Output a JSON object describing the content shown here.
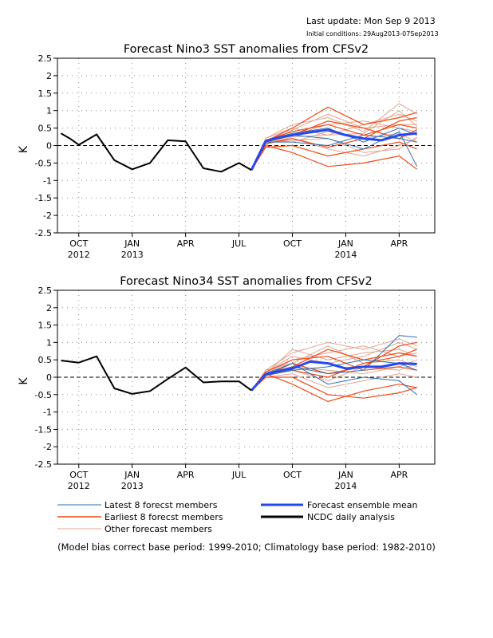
{
  "header": {
    "last_update": "Last update: Mon Sep 9 2013",
    "initial_conditions": "Initial conditions: 29Aug2013-07Sep2013"
  },
  "x_ticks": [
    {
      "label": "OCT",
      "year": "2012",
      "month": 0
    },
    {
      "label": "JAN",
      "year": "2013",
      "month": 3
    },
    {
      "label": "APR",
      "year": "",
      "month": 6
    },
    {
      "label": "JUL",
      "year": "",
      "month": 9
    },
    {
      "label": "OCT",
      "year": "",
      "month": 12
    },
    {
      "label": "JAN",
      "year": "2014",
      "month": 15
    },
    {
      "label": "APR",
      "year": "",
      "month": 18
    }
  ],
  "legend": {
    "latest": "Latest 8 forecst members",
    "earliest": "Earliest 8 forecst members",
    "other": "Other forecast members",
    "mean": "Forecast ensemble mean",
    "ncdc": "NCDC daily analysis"
  },
  "colors": {
    "latest": "#2f6fb0",
    "earliest": "#ee4a14",
    "other": "#e3a592",
    "mean": "#2448ee",
    "ncdc": "#000000"
  },
  "footnote": "(Model bias correct base period: 1999-2010; Climatology base period: 1982-2010)",
  "chart_data": [
    {
      "type": "line",
      "title": "Forecast Nino3 SST anomalies from CFSv2",
      "ylabel": "K",
      "ylim": [
        -2.5,
        2.5
      ],
      "yticks": [
        "2.5",
        "2",
        "1.5",
        "1",
        "0.5",
        "0",
        "-0.5",
        "-1",
        "-1.5",
        "-2",
        "-2.5"
      ],
      "grid": true,
      "x_units": "months since Sep 2012",
      "ncdc_analysis": {
        "x": [
          -1,
          -0.5,
          0,
          1,
          2,
          3,
          4,
          5,
          6,
          7,
          8,
          9,
          9.7
        ],
        "y": [
          0.35,
          0.2,
          0.02,
          0.32,
          -0.42,
          -0.68,
          -0.5,
          0.15,
          0.12,
          -0.65,
          -0.75,
          -0.5,
          -0.7
        ]
      },
      "ensemble_mean": {
        "x": [
          9.7,
          10.5,
          11,
          12,
          13,
          14,
          15,
          16,
          17,
          18,
          19
        ],
        "y": [
          -0.7,
          0.12,
          0.2,
          0.3,
          0.38,
          0.45,
          0.3,
          0.2,
          0.15,
          0.3,
          0.35
        ]
      },
      "earliest_members": [
        {
          "x": [
            9.7,
            10.5,
            12,
            14,
            16,
            18,
            19
          ],
          "y": [
            -0.7,
            0.12,
            0.5,
            1.1,
            0.6,
            0.8,
            0.95
          ]
        },
        {
          "x": [
            9.7,
            10.5,
            12,
            14,
            16,
            18,
            19
          ],
          "y": [
            -0.7,
            0.0,
            -0.2,
            -0.6,
            -0.5,
            -0.3,
            -0.68
          ]
        },
        {
          "x": [
            9.7,
            10.5,
            12,
            14,
            16,
            18,
            19
          ],
          "y": [
            -0.7,
            0.15,
            0.4,
            0.6,
            0.3,
            0.6,
            0.5
          ]
        },
        {
          "x": [
            9.7,
            10.5,
            12,
            14,
            16,
            18,
            19
          ],
          "y": [
            -0.7,
            0.05,
            0.2,
            -0.05,
            0.2,
            0.7,
            0.8
          ]
        },
        {
          "x": [
            9.7,
            10.5,
            12,
            14,
            16,
            18,
            19
          ],
          "y": [
            -0.7,
            0.1,
            0.3,
            0.7,
            0.5,
            0.2,
            0.45
          ]
        },
        {
          "x": [
            9.7,
            10.5,
            12,
            14,
            16,
            18,
            19
          ],
          "y": [
            -0.7,
            -0.05,
            0.0,
            -0.3,
            -0.1,
            0.1,
            -0.1
          ]
        }
      ],
      "latest_members": [
        {
          "x": [
            9.7,
            10.5,
            12,
            14,
            16,
            18,
            19
          ],
          "y": [
            -0.7,
            0.1,
            0.3,
            0.2,
            -0.1,
            0.4,
            -0.6
          ]
        },
        {
          "x": [
            9.7,
            10.5,
            12,
            14,
            16,
            18,
            19
          ],
          "y": [
            -0.7,
            0.15,
            0.35,
            0.5,
            0.1,
            0.5,
            0.3
          ]
        },
        {
          "x": [
            9.7,
            10.5,
            12,
            14,
            16,
            18,
            19
          ],
          "y": [
            -0.7,
            0.1,
            0.1,
            0.0,
            0.3,
            0.2,
            0.1
          ]
        }
      ],
      "other_members": [
        {
          "x": [
            9.7,
            10.5,
            12,
            14,
            16,
            18,
            19
          ],
          "y": [
            -0.7,
            0.2,
            0.6,
            0.8,
            0.4,
            1.2,
            0.9
          ]
        },
        {
          "x": [
            9.7,
            10.5,
            12,
            14,
            16,
            18,
            19
          ],
          "y": [
            -0.7,
            0.05,
            0.25,
            0.3,
            0.6,
            0.9,
            0.7
          ]
        },
        {
          "x": [
            9.7,
            10.5,
            12,
            14,
            16,
            18,
            19
          ],
          "y": [
            -0.7,
            0.1,
            0.2,
            -0.1,
            -0.3,
            0.0,
            0.2
          ]
        },
        {
          "x": [
            9.7,
            10.5,
            12,
            14,
            16,
            18,
            19
          ],
          "y": [
            -0.7,
            0.0,
            0.45,
            0.9,
            0.5,
            0.6,
            0.6
          ]
        },
        {
          "x": [
            9.7,
            10.5,
            12,
            14,
            16,
            18,
            19
          ],
          "y": [
            -0.7,
            0.15,
            0.1,
            0.4,
            0.2,
            0.35,
            0.1
          ]
        },
        {
          "x": [
            9.7,
            10.5,
            12,
            14,
            16,
            18,
            19
          ],
          "y": [
            -0.7,
            0.05,
            0.3,
            0.6,
            0.7,
            0.5,
            0.4
          ]
        },
        {
          "x": [
            9.7,
            10.5,
            12,
            14,
            16,
            18,
            19
          ],
          "y": [
            -0.7,
            0.1,
            0.15,
            0.2,
            -0.2,
            -0.1,
            0.25
          ]
        },
        {
          "x": [
            9.7,
            10.5,
            12,
            14,
            16,
            18,
            19
          ],
          "y": [
            -0.7,
            0.2,
            0.5,
            0.3,
            0.35,
            1.0,
            0.55
          ]
        }
      ]
    },
    {
      "type": "line",
      "title": "Forecast Nino34 SST anomalies from CFSv2",
      "ylabel": "K",
      "ylim": [
        -2.5,
        2.5
      ],
      "yticks": [
        "2.5",
        "2",
        "1.5",
        "1",
        "0.5",
        "0",
        "-0.5",
        "-1",
        "-1.5",
        "-2",
        "-2.5"
      ],
      "grid": true,
      "x_units": "months since Sep 2012",
      "ncdc_analysis": {
        "x": [
          -1,
          0,
          1,
          2,
          3,
          4,
          5,
          6,
          7,
          8,
          9,
          9.7
        ],
        "y": [
          0.48,
          0.42,
          0.6,
          -0.32,
          -0.48,
          -0.4,
          -0.05,
          0.28,
          -0.15,
          -0.12,
          -0.12,
          -0.38
        ]
      },
      "ensemble_mean": {
        "x": [
          9.7,
          10.5,
          11,
          12,
          13,
          14,
          15,
          16,
          17,
          18,
          19
        ],
        "y": [
          -0.38,
          0.08,
          0.15,
          0.25,
          0.45,
          0.4,
          0.25,
          0.3,
          0.3,
          0.4,
          0.38
        ]
      },
      "earliest_members": [
        {
          "x": [
            9.7,
            10.5,
            12,
            14,
            16,
            18,
            19
          ],
          "y": [
            -0.38,
            0.0,
            0.0,
            -0.5,
            -0.6,
            -0.45,
            -0.3
          ]
        },
        {
          "x": [
            9.7,
            10.5,
            12,
            14,
            16,
            18,
            19
          ],
          "y": [
            -0.38,
            0.1,
            0.3,
            0.8,
            0.5,
            0.7,
            0.6
          ]
        },
        {
          "x": [
            9.7,
            10.5,
            12,
            14,
            16,
            18,
            19
          ],
          "y": [
            -0.38,
            0.1,
            -0.2,
            -0.7,
            -0.4,
            -0.2,
            -0.3
          ]
        },
        {
          "x": [
            9.7,
            10.5,
            12,
            14,
            16,
            18,
            19
          ],
          "y": [
            -0.38,
            0.05,
            0.4,
            0.1,
            0.3,
            0.9,
            1.0
          ]
        },
        {
          "x": [
            9.7,
            10.5,
            12,
            14,
            16,
            18,
            19
          ],
          "y": [
            -0.38,
            0.15,
            0.5,
            0.6,
            0.2,
            0.3,
            0.2
          ]
        },
        {
          "x": [
            9.7,
            10.5,
            12,
            14,
            16,
            18,
            19
          ],
          "y": [
            -0.38,
            0.05,
            0.2,
            0.0,
            0.4,
            0.6,
            0.8
          ]
        }
      ],
      "latest_members": [
        {
          "x": [
            9.7,
            10.5,
            12,
            14,
            16,
            18,
            19
          ],
          "y": [
            -0.38,
            0.1,
            0.3,
            0.1,
            0.2,
            1.2,
            1.15
          ]
        },
        {
          "x": [
            9.7,
            10.5,
            12,
            14,
            16,
            18,
            19
          ],
          "y": [
            -0.38,
            0.1,
            0.4,
            -0.2,
            0.0,
            -0.1,
            -0.5
          ]
        },
        {
          "x": [
            9.7,
            10.5,
            12,
            14,
            16,
            18,
            19
          ],
          "y": [
            -0.38,
            0.05,
            0.2,
            0.3,
            0.5,
            0.4,
            0.2
          ]
        }
      ],
      "other_members": [
        {
          "x": [
            9.7,
            10.5,
            12,
            14,
            16,
            18,
            19
          ],
          "y": [
            -0.38,
            0.2,
            0.7,
            1.0,
            0.8,
            1.1,
            0.9
          ]
        },
        {
          "x": [
            9.7,
            10.5,
            12,
            14,
            16,
            18,
            19
          ],
          "y": [
            -0.38,
            0.1,
            0.5,
            0.7,
            0.9,
            0.6,
            0.7
          ]
        },
        {
          "x": [
            9.7,
            10.5,
            12,
            14,
            16,
            18,
            19
          ],
          "y": [
            -0.38,
            0.0,
            0.1,
            -0.3,
            -0.1,
            0.1,
            0.0
          ]
        },
        {
          "x": [
            9.7,
            10.5,
            12,
            14,
            16,
            18,
            19
          ],
          "y": [
            -0.38,
            0.15,
            0.6,
            0.4,
            0.6,
            1.0,
            0.8
          ]
        },
        {
          "x": [
            9.7,
            10.5,
            12,
            14,
            16,
            18,
            19
          ],
          "y": [
            -0.38,
            0.05,
            0.3,
            0.2,
            0.1,
            0.3,
            0.5
          ]
        },
        {
          "x": [
            9.7,
            10.5,
            12,
            14,
            16,
            18,
            19
          ],
          "y": [
            -0.38,
            0.1,
            0.8,
            0.5,
            0.7,
            0.8,
            0.6
          ]
        },
        {
          "x": [
            9.7,
            10.5,
            12,
            14,
            16,
            18,
            19
          ],
          "y": [
            -0.38,
            0.2,
            0.4,
            0.9,
            0.4,
            0.5,
            0.3
          ]
        },
        {
          "x": [
            9.7,
            10.5,
            12,
            14,
            16,
            18,
            19
          ],
          "y": [
            -0.38,
            0.05,
            0.2,
            -0.1,
            0.3,
            0.2,
            0.4
          ]
        }
      ]
    }
  ]
}
